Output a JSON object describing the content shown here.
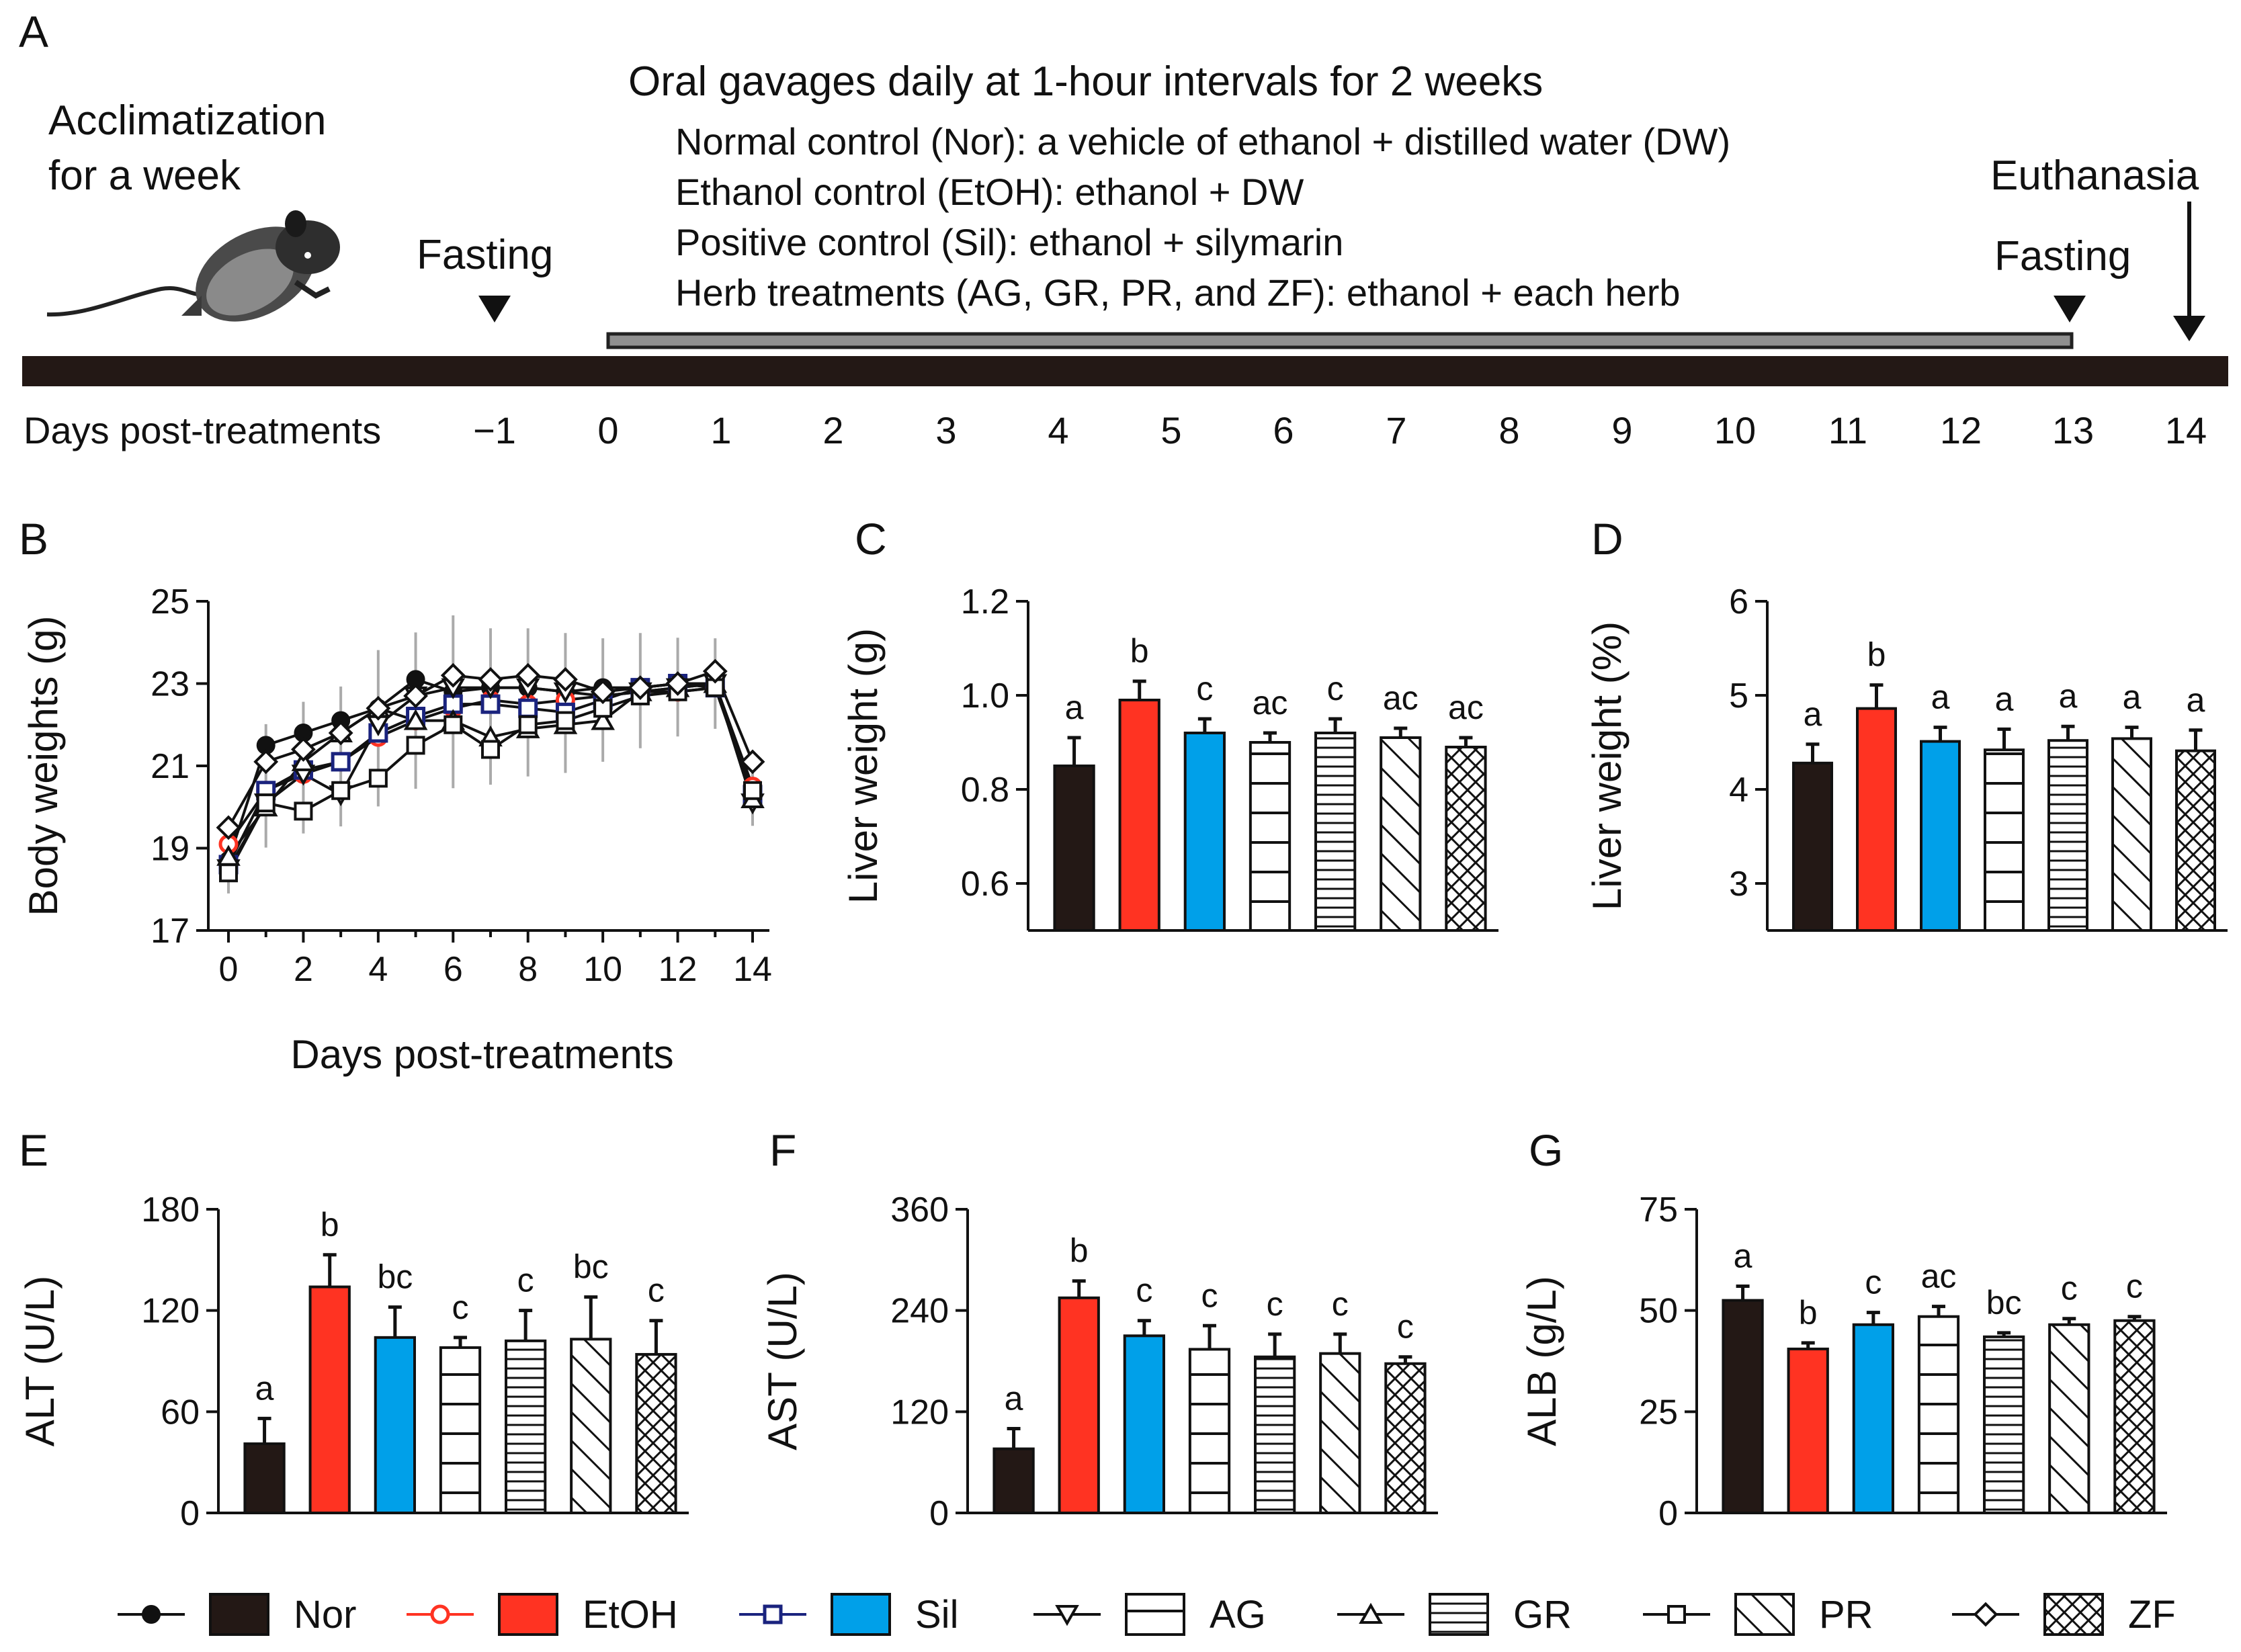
{
  "colors": {
    "Nor": "#231815",
    "EtOH": "#ff3322",
    "Sil": "#00a0e9",
    "white": "#ffffff",
    "error": "#aaaaaa",
    "bar": "#231815",
    "timeline": "#909090"
  },
  "panelA": {
    "letter": "A",
    "acclimatization": [
      "Acclimatization",
      "for a week"
    ],
    "fasting_left": "Fasting",
    "fasting_right": "Fasting",
    "euthanasia": "Euthanasia",
    "gavage_title": "Oral gavages daily at 1-hour intervals for 2 weeks",
    "groups": [
      "Normal control (Nor): a vehicle of ethanol + distilled water (DW)",
      "Ethanol control (EtOH): ethanol + DW",
      "Positive control (Sil): ethanol + silymarin",
      "Herb treatments (AG, GR, PR, and ZF): ethanol + each herb"
    ],
    "days_label": "Days post-treatments",
    "days": [
      "−1",
      "0",
      "1",
      "2",
      "3",
      "4",
      "5",
      "6",
      "7",
      "8",
      "9",
      "10",
      "11",
      "12",
      "13",
      "14"
    ]
  },
  "legend": [
    {
      "group": "Nor",
      "line_marker": "filled-circle",
      "bar_fill": "solid-black"
    },
    {
      "group": "EtOH",
      "line_marker": "red-open-circle",
      "bar_fill": "solid-red"
    },
    {
      "group": "Sil",
      "line_marker": "blue-open-square",
      "bar_fill": "solid-blue"
    },
    {
      "group": "AG",
      "line_marker": "open-triangle-down",
      "bar_fill": "horizontal-lines"
    },
    {
      "group": "GR",
      "line_marker": "open-triangle-up",
      "bar_fill": "dense-horizontal-lines"
    },
    {
      "group": "PR",
      "line_marker": "open-square",
      "bar_fill": "diagonal-lines"
    },
    {
      "group": "ZF",
      "line_marker": "open-diamond",
      "bar_fill": "cross-hatch"
    }
  ],
  "chart_data": [
    {
      "panel": "B",
      "type": "line",
      "xlabel": "Days post-treatments",
      "ylabel": "Body weights (g)",
      "xlim": [
        0,
        14
      ],
      "ylim": [
        17,
        25
      ],
      "xticks": [
        0,
        2,
        4,
        6,
        8,
        10,
        12,
        14
      ],
      "yticks": [
        17,
        19,
        21,
        23,
        25
      ],
      "x": [
        0,
        1,
        2,
        3,
        4,
        5,
        6,
        7,
        8,
        9,
        10,
        11,
        12,
        13,
        14
      ],
      "error_band": [
        0.9,
        1.5,
        1.6,
        1.7,
        1.9,
        1.9,
        2.1,
        1.9,
        1.8,
        1.7,
        1.5,
        1.4,
        1.2,
        1.1,
        0.9
      ],
      "series": [
        {
          "name": "Nor",
          "marker": "filled-circle",
          "values": [
            18.7,
            21.5,
            21.8,
            22.1,
            22.4,
            23.1,
            22.8,
            22.9,
            22.9,
            22.8,
            22.9,
            22.9,
            23.0,
            23.0,
            20.5
          ]
        },
        {
          "name": "EtOH",
          "marker": "red-open-circle",
          "values": [
            19.1,
            20.4,
            20.8,
            21.1,
            21.7,
            22.1,
            22.4,
            22.6,
            22.5,
            22.6,
            22.7,
            22.8,
            22.8,
            22.9,
            20.5
          ]
        },
        {
          "name": "Sil",
          "marker": "blue-open-square",
          "values": [
            18.6,
            20.4,
            20.9,
            21.1,
            21.8,
            22.2,
            22.5,
            22.5,
            22.4,
            22.3,
            22.6,
            22.9,
            23.0,
            22.9,
            20.3
          ]
        },
        {
          "name": "AG",
          "marker": "open-triangle-down",
          "values": [
            18.5,
            20.1,
            20.8,
            20.3,
            22.0,
            22.7,
            22.9,
            22.9,
            22.9,
            22.8,
            22.7,
            22.8,
            22.9,
            23.0,
            20.1
          ]
        },
        {
          "name": "GR",
          "marker": "open-triangle-up",
          "values": [
            18.8,
            20.0,
            21.1,
            21.8,
            22.4,
            22.1,
            22.1,
            21.7,
            21.9,
            22.0,
            22.1,
            22.8,
            22.9,
            23.0,
            20.2
          ]
        },
        {
          "name": "PR",
          "marker": "open-square",
          "values": [
            18.4,
            20.1,
            19.9,
            20.4,
            20.7,
            21.5,
            22.0,
            21.4,
            22.0,
            22.1,
            22.4,
            22.7,
            22.8,
            22.9,
            20.4
          ]
        },
        {
          "name": "ZF",
          "marker": "open-diamond",
          "values": [
            19.5,
            21.1,
            21.4,
            21.8,
            22.4,
            22.7,
            23.2,
            23.1,
            23.2,
            23.1,
            22.8,
            22.9,
            23.0,
            23.3,
            21.1
          ]
        }
      ]
    },
    {
      "panel": "C",
      "type": "bar",
      "ylabel": "Liver weight (g)",
      "ylim": [
        0.5,
        1.2
      ],
      "yticks": [
        0.6,
        0.8,
        1.0,
        1.2
      ],
      "yticklabels": [
        "0.6",
        "0.8",
        "1.0",
        "1.2"
      ],
      "categories": [
        "Nor",
        "EtOH",
        "Sil",
        "AG",
        "GR",
        "PR",
        "ZF"
      ],
      "values": [
        0.85,
        0.99,
        0.92,
        0.9,
        0.92,
        0.91,
        0.89
      ],
      "errors": [
        0.06,
        0.04,
        0.03,
        0.02,
        0.03,
        0.02,
        0.02
      ],
      "labels": [
        "a",
        "b",
        "c",
        "ac",
        "c",
        "ac",
        "ac"
      ]
    },
    {
      "panel": "D",
      "type": "bar",
      "ylabel": "Liver weight (%)",
      "ylim": [
        2.5,
        6
      ],
      "yticks": [
        3,
        4,
        5,
        6
      ],
      "yticklabels": [
        "3",
        "4",
        "5",
        "6"
      ],
      "categories": [
        "Nor",
        "EtOH",
        "Sil",
        "AG",
        "GR",
        "PR",
        "ZF"
      ],
      "values": [
        4.28,
        4.86,
        4.51,
        4.42,
        4.52,
        4.54,
        4.41
      ],
      "errors": [
        0.2,
        0.25,
        0.15,
        0.22,
        0.15,
        0.12,
        0.22
      ],
      "labels": [
        "a",
        "b",
        "a",
        "a",
        "a",
        "a",
        "a"
      ]
    },
    {
      "panel": "E",
      "type": "bar",
      "ylabel": "ALT (U/L)",
      "ylim": [
        0,
        180
      ],
      "yticks": [
        0,
        60,
        120,
        180
      ],
      "yticklabels": [
        "0",
        "60",
        "120",
        "180"
      ],
      "categories": [
        "Nor",
        "EtOH",
        "Sil",
        "AG",
        "GR",
        "PR",
        "ZF"
      ],
      "values": [
        41,
        134,
        104,
        98,
        102,
        103,
        94
      ],
      "errors": [
        15,
        19,
        18,
        6,
        18,
        25,
        20
      ],
      "labels": [
        "a",
        "b",
        "bc",
        "c",
        "c",
        "bc",
        "c"
      ]
    },
    {
      "panel": "F",
      "type": "bar",
      "ylabel": "AST (U/L)",
      "ylim": [
        0,
        360
      ],
      "yticks": [
        0,
        120,
        240,
        360
      ],
      "yticklabels": [
        "0",
        "120",
        "240",
        "360"
      ],
      "categories": [
        "Nor",
        "EtOH",
        "Sil",
        "AG",
        "GR",
        "PR",
        "ZF"
      ],
      "values": [
        76,
        255,
        210,
        194,
        185,
        189,
        177
      ],
      "errors": [
        24,
        20,
        18,
        28,
        27,
        23,
        8
      ],
      "labels": [
        "a",
        "b",
        "c",
        "c",
        "c",
        "c",
        "c"
      ]
    },
    {
      "panel": "G",
      "type": "bar",
      "ylabel": "ALB (g/L)",
      "ylim": [
        0,
        75
      ],
      "yticks": [
        0,
        25,
        50,
        75
      ],
      "yticklabels": [
        "0",
        "25",
        "50",
        "75"
      ],
      "categories": [
        "Nor",
        "EtOH",
        "Sil",
        "AG",
        "GR",
        "PR",
        "ZF"
      ],
      "values": [
        52.5,
        40.5,
        46.5,
        48.5,
        43.5,
        46.5,
        47.5
      ],
      "errors": [
        3.5,
        1.5,
        3.0,
        2.5,
        1.0,
        1.5,
        1.0
      ],
      "labels": [
        "a",
        "b",
        "c",
        "ac",
        "bc",
        "c",
        "c"
      ]
    }
  ]
}
